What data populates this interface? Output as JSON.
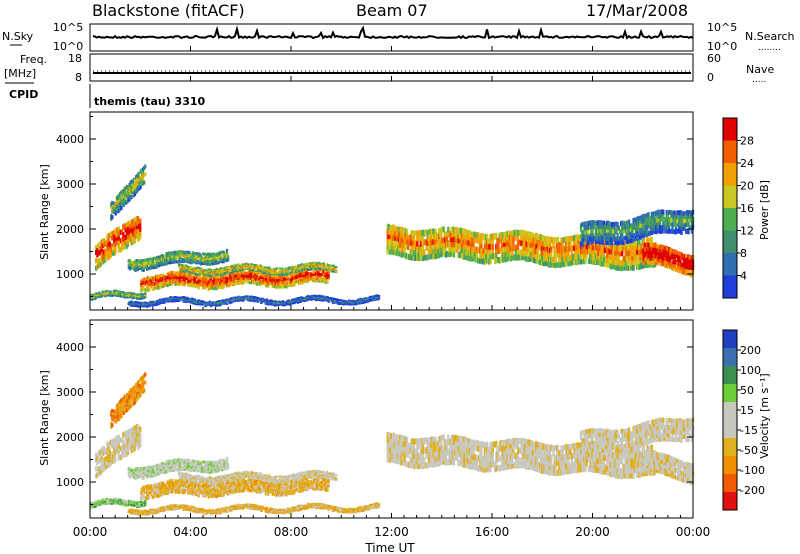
{
  "header": {
    "station": "Blackstone (fitACF)",
    "beam": "Beam 07",
    "date": "17/Mar/2008"
  },
  "left_labels": {
    "nsky": "N.Sky",
    "freq": "Freq.",
    "freq_unit": "[MHz]",
    "cpid": "CPID"
  },
  "right_labels": {
    "nsearch": "N.Search",
    "nsearch_dots": "........",
    "nave": "Nave",
    "nave_dots": "....."
  },
  "cpid_text": "themis (tau) 3310",
  "colors": {
    "power_scale": [
      "#1f3fd8",
      "#2f6fb0",
      "#3f8f6f",
      "#4fae4f",
      "#c8c820",
      "#f0a000",
      "#f06000",
      "#e00000"
    ],
    "velocity_scale": [
      "#e01010",
      "#f05a00",
      "#f09000",
      "#e0b020",
      "#c8c8be",
      "#c8c8be",
      "#6ccf3a",
      "#3a8f50",
      "#3a6fb0",
      "#2040c0"
    ],
    "ground_scatter": "#c0c0b8"
  },
  "chart_data": [
    {
      "type": "line",
      "name": "noise-panel",
      "left_label": "N.Sky",
      "right_label": "N.Search",
      "yticks_left": [
        "10^5",
        "10^0"
      ],
      "yticks_right": [
        "10^5",
        "10^0"
      ]
    },
    {
      "type": "line",
      "name": "frequency-panel",
      "left_label": "Freq. [MHz]",
      "right_label": "Nave",
      "yticks_left": [
        "18",
        "8"
      ],
      "yticks_right": [
        "60",
        "0"
      ],
      "ylim_left": [
        8,
        18
      ],
      "ylim_right": [
        0,
        60
      ]
    },
    {
      "type": "heatmap",
      "name": "power-panel",
      "ylabel": "Slant Range [km]",
      "yticks": [
        "4000",
        "3000",
        "2000",
        "1000"
      ],
      "ylim": [
        200,
        4600
      ],
      "xlim_hours": [
        0,
        24
      ],
      "colorbar_label": "Power [dB]",
      "colorbar_ticks": [
        "28",
        "24",
        "20",
        "16",
        "12",
        "8",
        "4"
      ],
      "colorbar_range": [
        0,
        32
      ]
    },
    {
      "type": "heatmap",
      "name": "velocity-panel",
      "ylabel": "Slant Range [km]",
      "yticks": [
        "4000",
        "3000",
        "2000",
        "1000"
      ],
      "ylim": [
        200,
        4600
      ],
      "xlim_hours": [
        0,
        24
      ],
      "colorbar_label": "Velocity [m s⁻¹]",
      "colorbar_ticks": [
        "200",
        "100",
        "50",
        "15",
        "-15",
        "-50",
        "-100",
        "-200"
      ]
    }
  ],
  "xaxis": {
    "ticks": [
      "00:00",
      "04:00",
      "08:00",
      "12:00",
      "16:00",
      "20:00",
      "00:00"
    ],
    "label": "Time UT"
  }
}
